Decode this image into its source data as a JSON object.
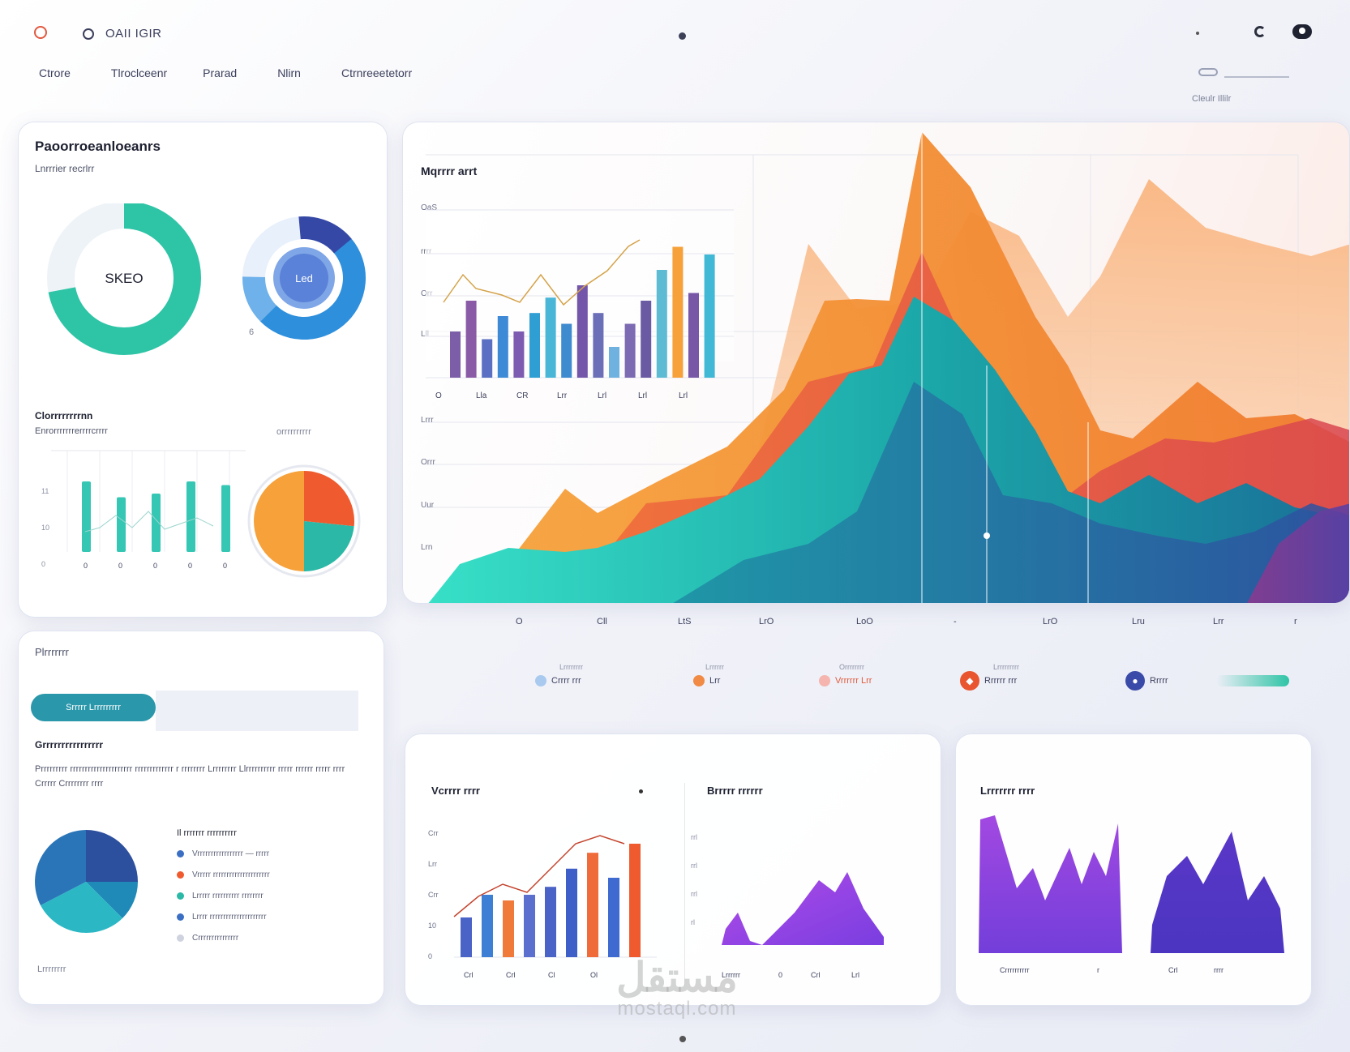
{
  "header": {
    "brand": "OAII IGIR",
    "nav": [
      "Ctrore",
      "Tlroclceenr",
      "Prarad",
      "Nlirn",
      "Ctrnreeetetorr"
    ],
    "meta": "Cleulr   Illilr"
  },
  "overview": {
    "title": "Paoorroeanloeanrs",
    "subtitle": "Lnrrrier recrlrr",
    "donut1_label": "SKEO",
    "donut1_value": 0.72,
    "donut2_label": "Led",
    "donut2_small": "6",
    "section_title": "Clorrrrrrrrnn",
    "section_sub": "Enrorrrrrrrerrrrcrrrr",
    "section_link": "orrrrrrrrrr",
    "mini_bars": [
      0.58,
      0.45,
      0.48,
      0.58,
      0.55
    ],
    "mini_ticks": [
      "0",
      "0",
      "0",
      "0",
      "0"
    ],
    "mini_y": [
      "11",
      "10",
      "0"
    ],
    "pie_colors": [
      "#ef5b2f",
      "#2bb8a6",
      "#f6a13a"
    ]
  },
  "main_chart": {
    "title": "Mqrrrr arrt",
    "y_labels_top": [
      "OaS",
      "rrrr",
      "Orr",
      "Lll"
    ],
    "y_labels_bottom": [
      "Lrrr",
      "Orrr",
      "Uur",
      "Lrn"
    ],
    "x_labels_small": [
      "O",
      "Lla",
      "CR",
      "Lrr",
      "Lrl",
      "Lrl",
      "Lrl"
    ],
    "x_labels": [
      "O",
      "Cll",
      "LtS",
      "LrO",
      "LoO",
      "-",
      "LrO",
      "Lru",
      "Lrr",
      "r"
    ],
    "bars": [
      0.3,
      0.5,
      0.25,
      0.4,
      0.3,
      0.42,
      0.52,
      0.35,
      0.6,
      0.42,
      0.2,
      0.35,
      0.5,
      0.7,
      0.85,
      0.55,
      0.8
    ],
    "bar_colors": [
      "#7b5ea7",
      "#8b5aa6",
      "#5b70c2",
      "#3e8ad6",
      "#7c5bb0",
      "#2f9ed2",
      "#49b6d8",
      "#3f8bd0",
      "#7356a9",
      "#6b6fb7",
      "#6fb2e0",
      "#7c6ab3",
      "#6a5aa4",
      "#5dbbd4",
      "#f6a13a",
      "#7757a6",
      "#41b8d6"
    ]
  },
  "legend": [
    {
      "label": "Crrrr rrr",
      "caption": "Lrrrrrrrr",
      "color": "#a9c9ef"
    },
    {
      "label": "Lrr",
      "caption": "Lrrrrrr",
      "color": "#f08a45"
    },
    {
      "label": "Vrrrrrr Lrr",
      "caption": "Orrrrrrrr",
      "color": "#f5b4ad"
    },
    {
      "label": "Rrrrrr rrr",
      "caption": "Lrrrrrrrrr",
      "color": "#e8552f"
    },
    {
      "label": "Rrrrr",
      "caption": "",
      "color": "#3a4aa8"
    }
  ],
  "details": {
    "title": "Plrrrrrrr",
    "tab_label": "Srrrrr Lrrrrrrrrr",
    "sub_title": "Grrrrrrrrrrrrrrrr",
    "paragraph": "Prrrrrrrrr rrrrrrrrrrrrrrrrrrrrr rrrrrrrrrrrrr r rrrrrrrr Lrrrrrrrr Llrrrrrrrrrr rrrrr rrrrrr rrrrr rrrr Crrrrr Crrrrrrrr rrrr",
    "list_title": "Il rrrrrrr rrrrrrrrrr",
    "tasks": [
      {
        "text": "Vrrrrrrrrrrrrrrrrr —  rrrrr",
        "color": "#3b6fc4"
      },
      {
        "text": "Vrrrrr rrrrrrrrrrrrrrrrrrrrr",
        "color": "#ef5b2f"
      },
      {
        "text": "Lrrrrr rrrrrrrrrr  rrrrrrrr",
        "color": "#2bb8a6"
      },
      {
        "text": "Lrrrr rrrrrrrrrrrrrrrrrrrrr",
        "color": "#3b6fc4"
      },
      {
        "text": "Crrrrrrrrrrrrrrr",
        "color": "#cfd3df"
      }
    ],
    "footer": "Lrrrrrrrr"
  },
  "bottom_mid": {
    "title_left": "Vcrrrr rrrr",
    "title_right": "Brrrrr rrrrrr",
    "left_y": [
      "Crr",
      "Lrr",
      "Crr",
      "10",
      "0"
    ],
    "left_x": [
      "Crl",
      "Crl",
      "Cl",
      "Ol"
    ],
    "right_y": [
      "rrl",
      "rrl",
      "rrl",
      "rl"
    ],
    "right_x": [
      "Lrrrrrr",
      "0",
      "Crl",
      "Lrl"
    ],
    "bars": [
      0.35,
      0.55,
      0.5,
      0.55,
      0.62,
      0.78,
      0.92,
      0.7,
      1.0
    ],
    "bar_colors": [
      "#4a63c6",
      "#3e7fd6",
      "#f07a3a",
      "#5b6fcf",
      "#4a63c6",
      "#3e5ec8",
      "#f06b3a",
      "#3f6ad0",
      "#ef5b2f"
    ]
  },
  "bottom_right": {
    "title": "Lrrrrrrr rrrr",
    "x_left": "Crrrrrrrrrr",
    "x_mark": "r",
    "x_right": [
      "Crl",
      "rrrr"
    ]
  },
  "watermark": {
    "arabic": "مستقل",
    "latin": "mostaql.com"
  }
}
